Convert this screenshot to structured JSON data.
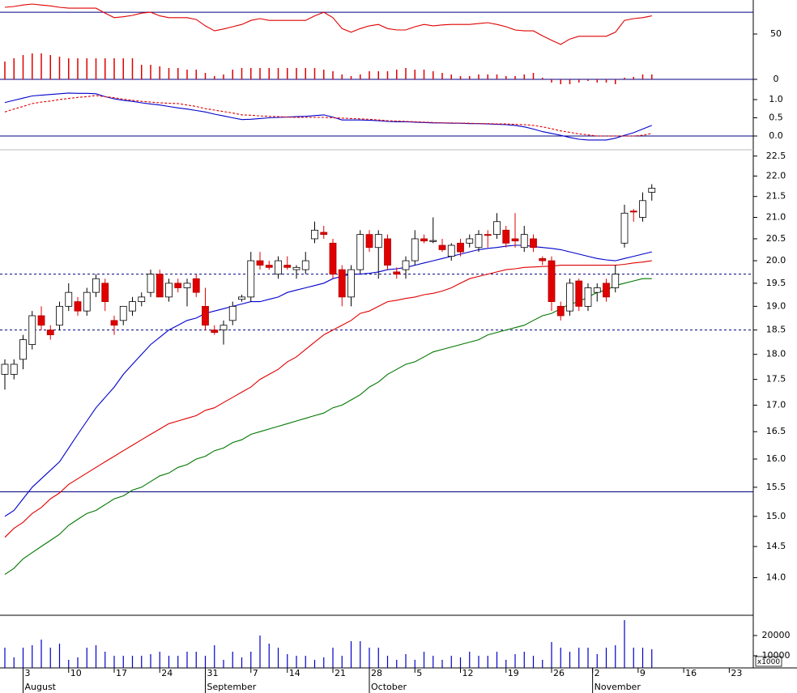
{
  "chart_data": [
    {
      "type": "line",
      "ylim": [
        -6,
        87.5
      ],
      "yticks": [
        0,
        50
      ],
      "hline_color": "#000080",
      "hlines": [
        {
          "value": 74,
          "dash": false
        },
        {
          "value": 0,
          "dash": false
        }
      ],
      "series": [
        {
          "color": "#e00000",
          "values": [
            79.5,
            80.4,
            82,
            83,
            82,
            81,
            79.5,
            78.5,
            78.5,
            78.5,
            78.5,
            73,
            68,
            69,
            70.5,
            73,
            74,
            70,
            68,
            68,
            68,
            66,
            59,
            53.5,
            55.5,
            58,
            60.5,
            65,
            67,
            65,
            65,
            65,
            65,
            65,
            70,
            74,
            68,
            56,
            52,
            56,
            59,
            60.5,
            56,
            54.5,
            54.5,
            58,
            60.5,
            59,
            60,
            60.5,
            60.5,
            60.5,
            61.5,
            62.5,
            60.5,
            58,
            54.5,
            53.5,
            53.5,
            48,
            43,
            38.5,
            44.5,
            47.5,
            47.5,
            47.5,
            47.5,
            52,
            65,
            67,
            68,
            70
          ]
        },
        {
          "type": "bar",
          "color": "#e00000",
          "values": [
            19.6,
            23.2,
            26.8,
            28.6,
            28.6,
            26.8,
            25,
            23.2,
            23.2,
            23.2,
            23.2,
            23.2,
            23.2,
            23.2,
            23.2,
            16,
            16,
            14.3,
            12.5,
            12.5,
            10.7,
            10.7,
            7.1,
            3.6,
            5.4,
            10.7,
            12.5,
            12.5,
            12.5,
            12.5,
            12.5,
            12.5,
            12.5,
            12.5,
            12.5,
            10.7,
            8.9,
            5.4,
            3.6,
            5.4,
            8.9,
            8.9,
            8.9,
            10.7,
            12.5,
            10.7,
            10.7,
            8.9,
            7.1,
            5.4,
            3.6,
            3.6,
            5.4,
            5.4,
            5.4,
            3.6,
            3.6,
            5.4,
            7.1,
            1.8,
            -3.6,
            -5.4,
            -5.4,
            -3.6,
            -1.8,
            -3.6,
            -3.6,
            -5.4,
            1.8,
            2.7,
            5.4,
            5.4
          ]
        }
      ]
    },
    {
      "type": "line",
      "ylim": [
        -0.378,
        1.4
      ],
      "yticks": [
        {
          "value": 0,
          "label": "0.0"
        },
        0.5,
        {
          "value": 1,
          "label": "1.0"
        }
      ],
      "hline_color": "#000080",
      "hlines": [
        {
          "value": 0,
          "dash": false
        }
      ],
      "series": [
        {
          "color": "#0000cc",
          "dash": false,
          "values": [
            0.92,
            0.98,
            1.04,
            1.1,
            1.12,
            1.14,
            1.16,
            1.18,
            1.17,
            1.17,
            1.16,
            1.08,
            1.02,
            0.98,
            0.95,
            0.91,
            0.88,
            0.85,
            0.81,
            0.77,
            0.74,
            0.7,
            0.66,
            0.6,
            0.55,
            0.5,
            0.45,
            0.46,
            0.48,
            0.5,
            0.51,
            0.52,
            0.53,
            0.54,
            0.56,
            0.58,
            0.52,
            0.44,
            0.44,
            0.44,
            0.43,
            0.42,
            0.4,
            0.39,
            0.39,
            0.38,
            0.37,
            0.36,
            0.36,
            0.35,
            0.35,
            0.34,
            0.34,
            0.33,
            0.32,
            0.31,
            0.29,
            0.25,
            0.19,
            0.12,
            0.07,
            0.02,
            -0.04,
            -0.09,
            -0.11,
            -0.11,
            -0.11,
            -0.06,
            0.02,
            0.09,
            0.19,
            0.29
          ]
        },
        {
          "color": "#e00000",
          "dash": true,
          "values": [
            0.66,
            0.74,
            0.81,
            0.89,
            0.93,
            0.96,
            1.0,
            1.03,
            1.06,
            1.08,
            1.11,
            1.08,
            1.05,
            1.01,
            0.98,
            0.95,
            0.93,
            0.91,
            0.9,
            0.89,
            0.85,
            0.81,
            0.75,
            0.71,
            0.67,
            0.63,
            0.58,
            0.57,
            0.55,
            0.54,
            0.53,
            0.52,
            0.51,
            0.51,
            0.51,
            0.51,
            0.5,
            0.49,
            0.48,
            0.47,
            0.46,
            0.44,
            0.42,
            0.41,
            0.4,
            0.39,
            0.38,
            0.37,
            0.36,
            0.36,
            0.35,
            0.35,
            0.34,
            0.34,
            0.33,
            0.33,
            0.32,
            0.31,
            0.29,
            0.25,
            0.2,
            0.14,
            0.1,
            0.06,
            0.03,
            0.0,
            0.0,
            0.0,
            0.0,
            0.0,
            0.02,
            0.07
          ]
        }
      ]
    },
    {
      "type": "candlestick",
      "log_scale": true,
      "ylim": [
        13.42,
        22.66
      ],
      "yticks": [
        {
          "value": 14,
          "label": "14.0"
        },
        14.5,
        {
          "value": 15,
          "label": "15.0"
        },
        15.5,
        {
          "value": 16,
          "label": "16.0"
        },
        16.5,
        {
          "value": 17,
          "label": "17.0"
        },
        17.5,
        {
          "value": 18,
          "label": "18.0"
        },
        18.5,
        {
          "value": 19,
          "label": "19.0"
        },
        19.5,
        {
          "value": 20,
          "label": "20.0"
        },
        20.5,
        {
          "value": 21,
          "label": "21.0"
        },
        21.5,
        {
          "value": 22,
          "label": "22.0"
        },
        22.5
      ],
      "up_color": "#ffffff",
      "down_color": "#e00000",
      "hline_color": "#000080",
      "hlines": [
        {
          "value": 19.7,
          "dash": true
        },
        {
          "value": 18.5,
          "dash": true
        },
        {
          "value": 15.42,
          "dash": false
        }
      ],
      "open": [
        17.6,
        17.6,
        17.9,
        18.2,
        18.8,
        18.5,
        18.6,
        19.0,
        19.1,
        18.9,
        19.3,
        19.5,
        18.7,
        18.7,
        18.9,
        19.1,
        19.3,
        19.7,
        19.2,
        19.5,
        19.4,
        19.6,
        19.0,
        18.5,
        18.5,
        18.7,
        19.15,
        19.2,
        20.0,
        19.9,
        19.7,
        19.9,
        19.8,
        19.8,
        20.5,
        20.65,
        20.4,
        19.8,
        19.2,
        19.8,
        20.6,
        20.3,
        20.5,
        19.75,
        19.8,
        20.0,
        20.5,
        20.45,
        20.35,
        20.1,
        20.4,
        20.4,
        20.3,
        20.6,
        20.6,
        20.7,
        20.5,
        20.3,
        20.5,
        20.05,
        20.0,
        19.0,
        18.9,
        19.55,
        19.0,
        19.3,
        19.5,
        19.4,
        20.4,
        21.15,
        21.0,
        21.6
      ],
      "high": [
        17.9,
        17.9,
        18.4,
        18.9,
        19.0,
        18.6,
        19.1,
        19.5,
        19.2,
        19.4,
        19.7,
        19.6,
        18.8,
        19.0,
        19.2,
        19.3,
        19.8,
        19.8,
        19.6,
        19.6,
        19.6,
        19.7,
        19.4,
        18.6,
        18.7,
        19.1,
        19.25,
        20.2,
        20.2,
        20.0,
        20.1,
        20.1,
        19.9,
        20.2,
        20.9,
        20.8,
        20.5,
        19.9,
        19.9,
        20.7,
        20.7,
        20.7,
        20.6,
        19.85,
        20.1,
        20.7,
        20.6,
        21.0,
        20.5,
        20.4,
        20.5,
        20.6,
        20.7,
        20.7,
        21.1,
        20.8,
        21.1,
        20.8,
        20.6,
        20.1,
        20.1,
        19.1,
        19.6,
        19.6,
        19.5,
        19.5,
        19.6,
        19.9,
        21.3,
        21.2,
        21.6,
        21.8
      ],
      "low": [
        17.3,
        17.5,
        17.7,
        18.1,
        18.5,
        18.3,
        18.5,
        18.9,
        18.8,
        18.8,
        19.2,
        18.9,
        18.4,
        18.6,
        18.8,
        19.0,
        19.2,
        19.2,
        19.1,
        19.3,
        19.0,
        19.2,
        18.5,
        18.4,
        18.2,
        18.6,
        19.1,
        19.1,
        19.8,
        19.8,
        19.6,
        19.8,
        19.6,
        19.7,
        20.4,
        20.5,
        19.6,
        19.0,
        19.0,
        19.7,
        20.2,
        19.6,
        19.8,
        19.6,
        19.6,
        19.9,
        20.4,
        20.4,
        20.2,
        20.0,
        20.1,
        20.3,
        20.2,
        20.3,
        20.5,
        20.3,
        20.3,
        20.2,
        20.2,
        19.9,
        18.9,
        18.7,
        18.8,
        18.9,
        18.9,
        19.1,
        19.1,
        19.3,
        20.3,
        20.9,
        20.9,
        21.4
      ],
      "close": [
        17.8,
        17.8,
        18.3,
        18.8,
        18.6,
        18.4,
        19.0,
        19.3,
        18.9,
        19.3,
        19.6,
        19.1,
        18.6,
        19.0,
        19.1,
        19.2,
        19.7,
        19.2,
        19.5,
        19.4,
        19.5,
        19.3,
        18.6,
        18.45,
        18.6,
        19.0,
        19.2,
        20.0,
        19.9,
        19.85,
        20.0,
        19.85,
        19.85,
        20.0,
        20.7,
        20.6,
        19.7,
        19.2,
        19.8,
        20.6,
        20.3,
        20.6,
        19.9,
        19.7,
        20.0,
        20.5,
        20.45,
        20.46,
        20.25,
        20.35,
        20.2,
        20.5,
        20.6,
        20.58,
        20.9,
        20.4,
        20.45,
        20.6,
        20.3,
        20.0,
        19.1,
        18.8,
        19.5,
        19.0,
        19.4,
        19.4,
        19.2,
        19.7,
        21.1,
        21.13,
        21.4,
        21.7
      ],
      "series": [
        {
          "color": "#0000cc",
          "values": [
            15.0,
            15.1,
            15.3,
            15.5,
            15.65,
            15.8,
            15.95,
            16.2,
            16.45,
            16.7,
            16.95,
            17.15,
            17.35,
            17.6,
            17.8,
            18.0,
            18.2,
            18.35,
            18.5,
            18.6,
            18.7,
            18.75,
            18.85,
            18.9,
            18.95,
            19.0,
            19.05,
            19.1,
            19.1,
            19.15,
            19.2,
            19.3,
            19.35,
            19.4,
            19.45,
            19.5,
            19.6,
            19.65,
            19.7,
            19.7,
            19.72,
            19.75,
            19.8,
            19.82,
            19.85,
            19.9,
            19.95,
            20.0,
            20.05,
            20.1,
            20.15,
            20.2,
            20.25,
            20.28,
            20.3,
            20.33,
            20.35,
            20.35,
            20.32,
            20.3,
            20.28,
            20.25,
            20.2,
            20.15,
            20.1,
            20.05,
            20.02,
            20.0,
            20.05,
            20.1,
            20.15,
            20.2
          ]
        },
        {
          "color": "#e00000",
          "values": [
            14.65,
            14.8,
            14.9,
            15.05,
            15.15,
            15.3,
            15.4,
            15.55,
            15.65,
            15.75,
            15.85,
            15.95,
            16.05,
            16.15,
            16.25,
            16.35,
            16.45,
            16.55,
            16.65,
            16.7,
            16.75,
            16.8,
            16.9,
            16.95,
            17.05,
            17.15,
            17.25,
            17.35,
            17.5,
            17.6,
            17.7,
            17.85,
            17.95,
            18.1,
            18.25,
            18.4,
            18.5,
            18.6,
            18.7,
            18.85,
            18.9,
            19.0,
            19.1,
            19.13,
            19.17,
            19.2,
            19.25,
            19.28,
            19.33,
            19.4,
            19.5,
            19.6,
            19.65,
            19.7,
            19.75,
            19.8,
            19.82,
            19.85,
            19.86,
            19.87,
            19.88,
            19.9,
            19.9,
            19.9,
            19.9,
            19.9,
            19.9,
            19.9,
            19.92,
            19.95,
            19.97,
            20.0
          ]
        },
        {
          "color": "#007700",
          "values": [
            14.05,
            14.15,
            14.3,
            14.4,
            14.5,
            14.6,
            14.7,
            14.85,
            14.95,
            15.05,
            15.1,
            15.2,
            15.3,
            15.35,
            15.45,
            15.5,
            15.6,
            15.7,
            15.75,
            15.85,
            15.9,
            16.0,
            16.05,
            16.15,
            16.2,
            16.3,
            16.35,
            16.45,
            16.5,
            16.55,
            16.6,
            16.65,
            16.7,
            16.75,
            16.8,
            16.85,
            16.95,
            17.0,
            17.1,
            17.2,
            17.35,
            17.45,
            17.6,
            17.7,
            17.8,
            17.85,
            17.95,
            18.05,
            18.1,
            18.15,
            18.2,
            18.25,
            18.3,
            18.4,
            18.45,
            18.5,
            18.55,
            18.6,
            18.7,
            18.8,
            18.85,
            18.95,
            19.05,
            19.1,
            19.2,
            19.3,
            19.35,
            19.45,
            19.5,
            19.55,
            19.6,
            19.6
          ]
        }
      ]
    },
    {
      "type": "bar",
      "color": "#0000cc",
      "ylim": [
        4000,
        30000
      ],
      "yticks": [
        10000,
        20000
      ],
      "unit_label": "x1000",
      "values": [
        14000,
        9200,
        14000,
        15200,
        18000,
        14000,
        16000,
        8000,
        9200,
        14000,
        15200,
        12000,
        10000,
        10000,
        10000,
        10000,
        10800,
        12000,
        10000,
        10000,
        12000,
        12000,
        10000,
        15200,
        8000,
        12000,
        9200,
        12000,
        20000,
        16000,
        14000,
        10800,
        10000,
        10000,
        8000,
        9200,
        14000,
        10000,
        17200,
        17200,
        14000,
        14000,
        10000,
        8000,
        10800,
        8000,
        12000,
        10000,
        8000,
        10000,
        9200,
        12000,
        10000,
        10000,
        12000,
        8000,
        10800,
        12000,
        10000,
        8000,
        16800,
        14000,
        12000,
        14000,
        14000,
        10800,
        14000,
        15200,
        27600,
        14000,
        14000,
        13200
      ],
      "xticks": [
        {
          "value": 2,
          "label": "3"
        },
        {
          "value": 7,
          "label": "10"
        },
        {
          "value": 12,
          "label": "17"
        },
        {
          "value": 17,
          "label": "24"
        },
        {
          "value": 22,
          "label": "31"
        },
        {
          "value": 27,
          "label": "7"
        },
        {
          "value": 31,
          "label": "14"
        },
        {
          "value": 36,
          "label": "21"
        },
        {
          "value": 40,
          "label": "28"
        },
        {
          "value": 45,
          "label": "5"
        },
        {
          "value": 50,
          "label": "12"
        },
        {
          "value": 55,
          "label": "19"
        },
        {
          "value": 60,
          "label": "26"
        },
        {
          "value": 64.5,
          "label": "2"
        },
        {
          "value": 69.5,
          "label": "9"
        },
        {
          "value": 74.5,
          "label": "16"
        },
        {
          "value": 79.5,
          "label": "23"
        }
      ],
      "months": [
        {
          "value": 2,
          "label": "August"
        },
        {
          "value": 22,
          "label": "September"
        },
        {
          "value": 40,
          "label": "October"
        },
        {
          "value": 64.5,
          "label": "November"
        }
      ]
    }
  ]
}
